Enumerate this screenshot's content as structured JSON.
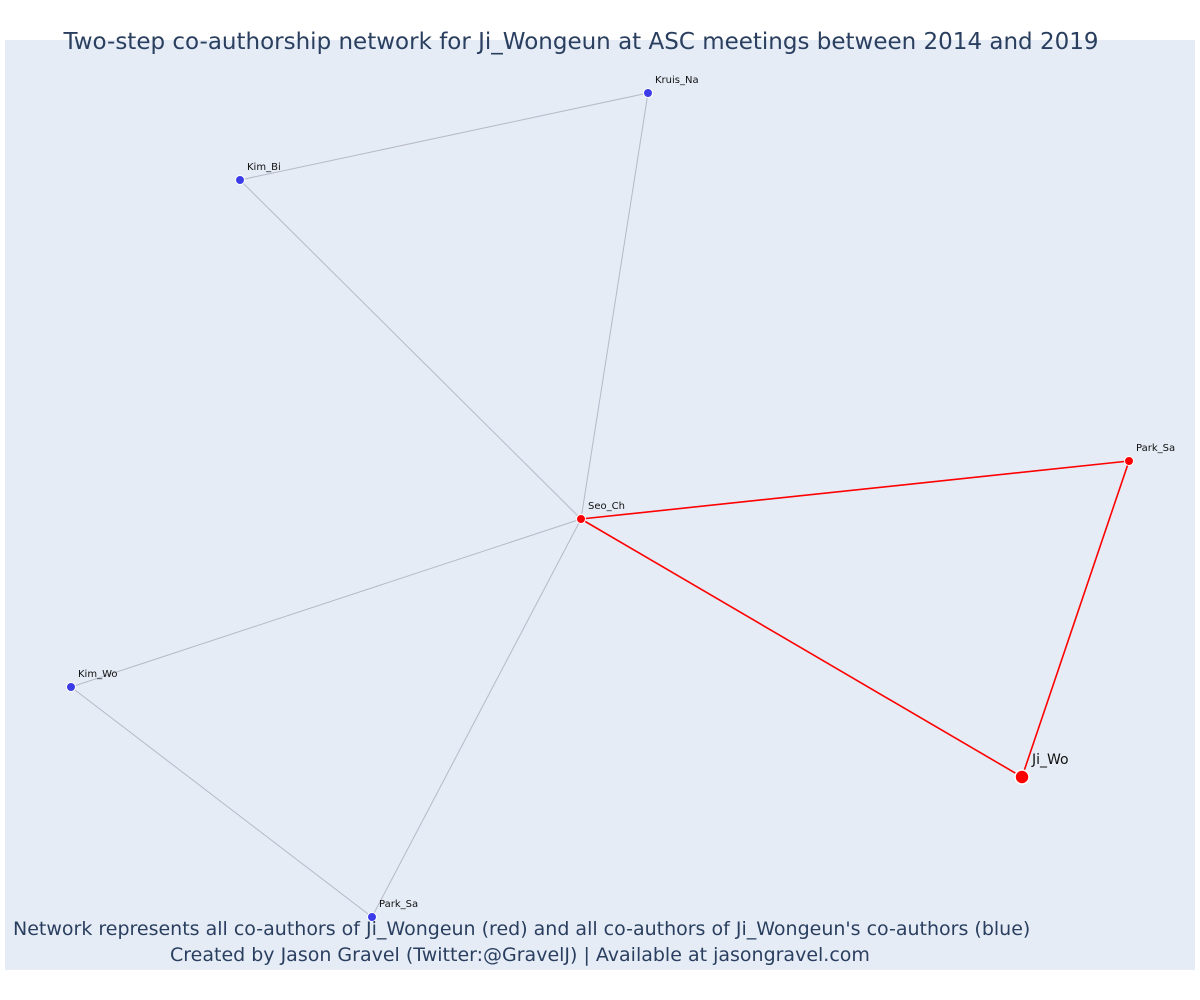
{
  "title": "Two-step co-authorship network for Ji_Wongeun at ASC meetings between 2014 and 2019",
  "captions": [
    "Network represents all co-authors of Ji_Wongeun (red) and all co-authors of Ji_Wongeun's co-authors (blue)",
    "Created by Jason Gravel (Twitter:@GravelJ) | Available at jasongravel.com"
  ],
  "colors": {
    "plot_background": "#e5ecf6",
    "first_step": "#ff0000",
    "second_step": "#3b3be8",
    "second_step_edge": "#b8b8c8",
    "text": "#2a3f5f"
  },
  "nodes": [
    {
      "id": "ji",
      "label": "Ji_Wo",
      "group": "focal"
    },
    {
      "id": "seo",
      "label": "Seo_Ch",
      "group": "coauthor"
    },
    {
      "id": "park1",
      "label": "Park_Sa",
      "group": "coauthor"
    },
    {
      "id": "kruis",
      "label": "Kruis_Na",
      "group": "second"
    },
    {
      "id": "kimbi",
      "label": "Kim_Bi",
      "group": "second"
    },
    {
      "id": "kimwo",
      "label": "Kim_Wo",
      "group": "second"
    },
    {
      "id": "park2",
      "label": "Park_Sa",
      "group": "second"
    }
  ],
  "edges": [
    {
      "source": "ji",
      "target": "seo",
      "group": "first"
    },
    {
      "source": "ji",
      "target": "park1",
      "group": "first"
    },
    {
      "source": "seo",
      "target": "park1",
      "group": "first"
    },
    {
      "source": "seo",
      "target": "kruis",
      "group": "second"
    },
    {
      "source": "seo",
      "target": "kimbi",
      "group": "second"
    },
    {
      "source": "kimbi",
      "target": "kruis",
      "group": "second"
    },
    {
      "source": "seo",
      "target": "kimwo",
      "group": "second"
    },
    {
      "source": "seo",
      "target": "park2",
      "group": "second"
    },
    {
      "source": "kimwo",
      "target": "park2",
      "group": "second"
    }
  ]
}
